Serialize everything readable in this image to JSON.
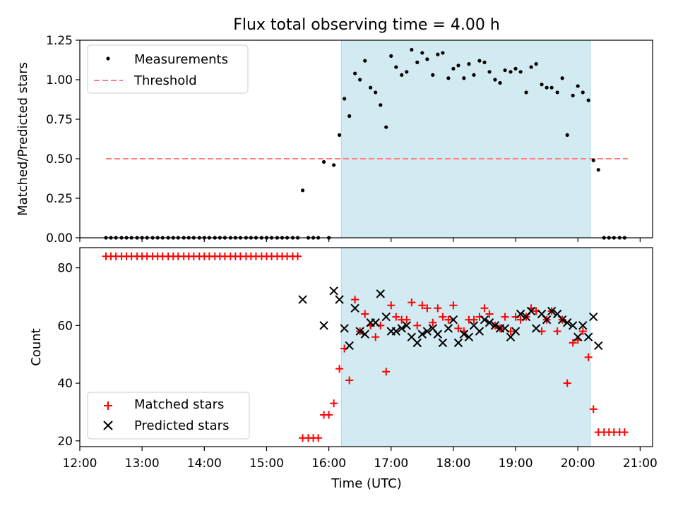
{
  "title": "Flux total observing time = 4.00 h",
  "colors": {
    "measurement": "#000000",
    "threshold": "#ff7f7f",
    "matched": "#ff0000",
    "predicted": "#000000",
    "observing_span": "#add8e6"
  },
  "chart_data": [
    {
      "type": "scatter",
      "panel": "top",
      "xlabel": "",
      "ylabel": "Matched/Predicted stars",
      "xlim": [
        12.0,
        21.2
      ],
      "ylim": [
        0.0,
        1.25
      ],
      "yticks": [
        0.0,
        0.25,
        0.5,
        0.75,
        1.0,
        1.25
      ],
      "ytick_labels": [
        "0.00",
        "0.25",
        "0.50",
        "0.75",
        "1.00",
        "1.25"
      ],
      "shaded_span": [
        16.2,
        20.2
      ],
      "legend": [
        "Measurements",
        "Threshold"
      ],
      "legend_location": "upper left",
      "threshold": {
        "name": "Threshold",
        "y": 0.5,
        "x_range": [
          12.42,
          20.8
        ]
      },
      "series": [
        {
          "name": "Measurements",
          "x": [
            12.42,
            12.5,
            12.58,
            12.67,
            12.75,
            12.83,
            12.92,
            13.0,
            13.08,
            13.17,
            13.25,
            13.33,
            13.42,
            13.5,
            13.58,
            13.67,
            13.75,
            13.83,
            13.92,
            14.0,
            14.08,
            14.17,
            14.25,
            14.33,
            14.42,
            14.5,
            14.58,
            14.67,
            14.75,
            14.83,
            14.92,
            15.0,
            15.08,
            15.17,
            15.25,
            15.33,
            15.42,
            15.5,
            15.58,
            15.67,
            15.75,
            15.83,
            15.92,
            16.0,
            16.08,
            16.17,
            16.25,
            16.33,
            16.42,
            16.5,
            16.58,
            16.67,
            16.75,
            16.83,
            16.92,
            17.0,
            17.08,
            17.17,
            17.25,
            17.33,
            17.42,
            17.5,
            17.58,
            17.67,
            17.75,
            17.83,
            17.92,
            18.0,
            18.08,
            18.17,
            18.25,
            18.33,
            18.42,
            18.5,
            18.58,
            18.67,
            18.75,
            18.83,
            18.92,
            19.0,
            19.08,
            19.17,
            19.25,
            19.33,
            19.42,
            19.5,
            19.58,
            19.67,
            19.75,
            19.83,
            19.92,
            20.0,
            20.08,
            20.17,
            20.25,
            20.33,
            20.42,
            20.5,
            20.58,
            20.67,
            20.75
          ],
          "y": [
            0,
            0,
            0,
            0,
            0,
            0,
            0,
            0,
            0,
            0,
            0,
            0,
            0,
            0,
            0,
            0,
            0,
            0,
            0,
            0,
            0,
            0,
            0,
            0,
            0,
            0,
            0,
            0,
            0,
            0,
            0,
            0,
            0,
            0,
            0,
            0,
            0,
            0,
            0.3,
            0,
            0,
            0,
            0.48,
            0,
            0.46,
            0.65,
            0.88,
            0.77,
            1.04,
            1.0,
            1.12,
            0.95,
            0.92,
            0.84,
            0.7,
            1.15,
            1.08,
            1.03,
            1.05,
            1.19,
            1.11,
            1.17,
            1.13,
            1.03,
            1.16,
            1.17,
            1.01,
            1.07,
            1.09,
            1.01,
            1.1,
            1.03,
            1.12,
            1.11,
            1.05,
            1.0,
            0.98,
            1.06,
            1.05,
            1.07,
            1.05,
            0.92,
            1.08,
            1.1,
            0.97,
            0.95,
            0.95,
            0.92,
            1.01,
            0.65,
            0.9,
            0.96,
            0.92,
            0.87,
            0.49,
            0.43,
            0,
            0,
            0,
            0,
            0
          ]
        }
      ]
    },
    {
      "type": "scatter",
      "panel": "bottom",
      "xlabel": "Time (UTC)",
      "ylabel": "Count",
      "xlim": [
        12.0,
        21.2
      ],
      "ylim": [
        18.0,
        87.0
      ],
      "xticks": [
        12,
        13,
        14,
        15,
        16,
        17,
        18,
        19,
        20,
        21
      ],
      "xtick_labels": [
        "12:00",
        "13:00",
        "14:00",
        "15:00",
        "16:00",
        "17:00",
        "18:00",
        "19:00",
        "20:00",
        "21:00"
      ],
      "yticks": [
        20,
        40,
        60,
        80
      ],
      "ytick_labels": [
        "20",
        "40",
        "60",
        "80"
      ],
      "shaded_span": [
        16.2,
        20.2
      ],
      "legend": [
        "Matched stars",
        "Predicted stars"
      ],
      "legend_location": "lower left",
      "series": [
        {
          "name": "Matched stars",
          "marker": "+",
          "x": [
            12.42,
            12.5,
            12.58,
            12.67,
            12.75,
            12.83,
            12.92,
            13.0,
            13.08,
            13.17,
            13.25,
            13.33,
            13.42,
            13.5,
            13.58,
            13.67,
            13.75,
            13.83,
            13.92,
            14.0,
            14.08,
            14.17,
            14.25,
            14.33,
            14.42,
            14.5,
            14.58,
            14.67,
            14.75,
            14.83,
            14.92,
            15.0,
            15.08,
            15.17,
            15.25,
            15.33,
            15.42,
            15.5,
            15.58,
            15.67,
            15.75,
            15.83,
            15.92,
            16.0,
            16.08,
            16.17,
            16.25,
            16.33,
            16.42,
            16.5,
            16.58,
            16.67,
            16.75,
            16.83,
            16.92,
            17.0,
            17.08,
            17.17,
            17.25,
            17.33,
            17.42,
            17.5,
            17.58,
            17.67,
            17.75,
            17.83,
            17.92,
            18.0,
            18.08,
            18.17,
            18.25,
            18.33,
            18.42,
            18.5,
            18.58,
            18.67,
            18.75,
            18.83,
            18.92,
            19.0,
            19.08,
            19.17,
            19.25,
            19.33,
            19.42,
            19.5,
            19.58,
            19.67,
            19.75,
            19.83,
            19.92,
            20.0,
            20.08,
            20.17,
            20.25,
            20.33,
            20.42,
            20.5,
            20.58,
            20.67,
            20.75
          ],
          "y": [
            84,
            84,
            84,
            84,
            84,
            84,
            84,
            84,
            84,
            84,
            84,
            84,
            84,
            84,
            84,
            84,
            84,
            84,
            84,
            84,
            84,
            84,
            84,
            84,
            84,
            84,
            84,
            84,
            84,
            84,
            84,
            84,
            84,
            84,
            84,
            84,
            84,
            84,
            21,
            21,
            21,
            21,
            29,
            29,
            33,
            45,
            52,
            41,
            69,
            58,
            64,
            60,
            56,
            60,
            44,
            67,
            63,
            62,
            62,
            68,
            60,
            67,
            66,
            61,
            66,
            63,
            62,
            67,
            59,
            58,
            62,
            62,
            63,
            66,
            64,
            60,
            59,
            63,
            58,
            63,
            62,
            63,
            66,
            65,
            58,
            62,
            65,
            58,
            62,
            40,
            54,
            55,
            58,
            49,
            31,
            23,
            23,
            23,
            23,
            23,
            23
          ]
        },
        {
          "name": "Predicted stars",
          "marker": "x",
          "x": [
            15.58,
            15.92,
            16.08,
            16.17,
            16.25,
            16.33,
            16.42,
            16.5,
            16.58,
            16.67,
            16.75,
            16.83,
            16.92,
            17.0,
            17.08,
            17.17,
            17.25,
            17.33,
            17.42,
            17.5,
            17.58,
            17.67,
            17.75,
            17.83,
            17.92,
            18.0,
            18.08,
            18.17,
            18.25,
            18.33,
            18.42,
            18.5,
            18.58,
            18.67,
            18.75,
            18.83,
            18.92,
            19.0,
            19.08,
            19.17,
            19.25,
            19.33,
            19.42,
            19.5,
            19.58,
            19.67,
            19.75,
            19.83,
            19.92,
            20.0,
            20.08,
            20.17,
            20.25,
            20.33
          ],
          "y": [
            69,
            60,
            72,
            69,
            59,
            53,
            66,
            58,
            57,
            61,
            61,
            71,
            63,
            58,
            58,
            59,
            60,
            56,
            54,
            57,
            58,
            59,
            57,
            54,
            59,
            62,
            54,
            57,
            56,
            60,
            58,
            62,
            61,
            60,
            59,
            59,
            56,
            58,
            64,
            63,
            65,
            59,
            64,
            62,
            65,
            64,
            62,
            61,
            60,
            56,
            60,
            56,
            63,
            53
          ]
        }
      ]
    }
  ]
}
